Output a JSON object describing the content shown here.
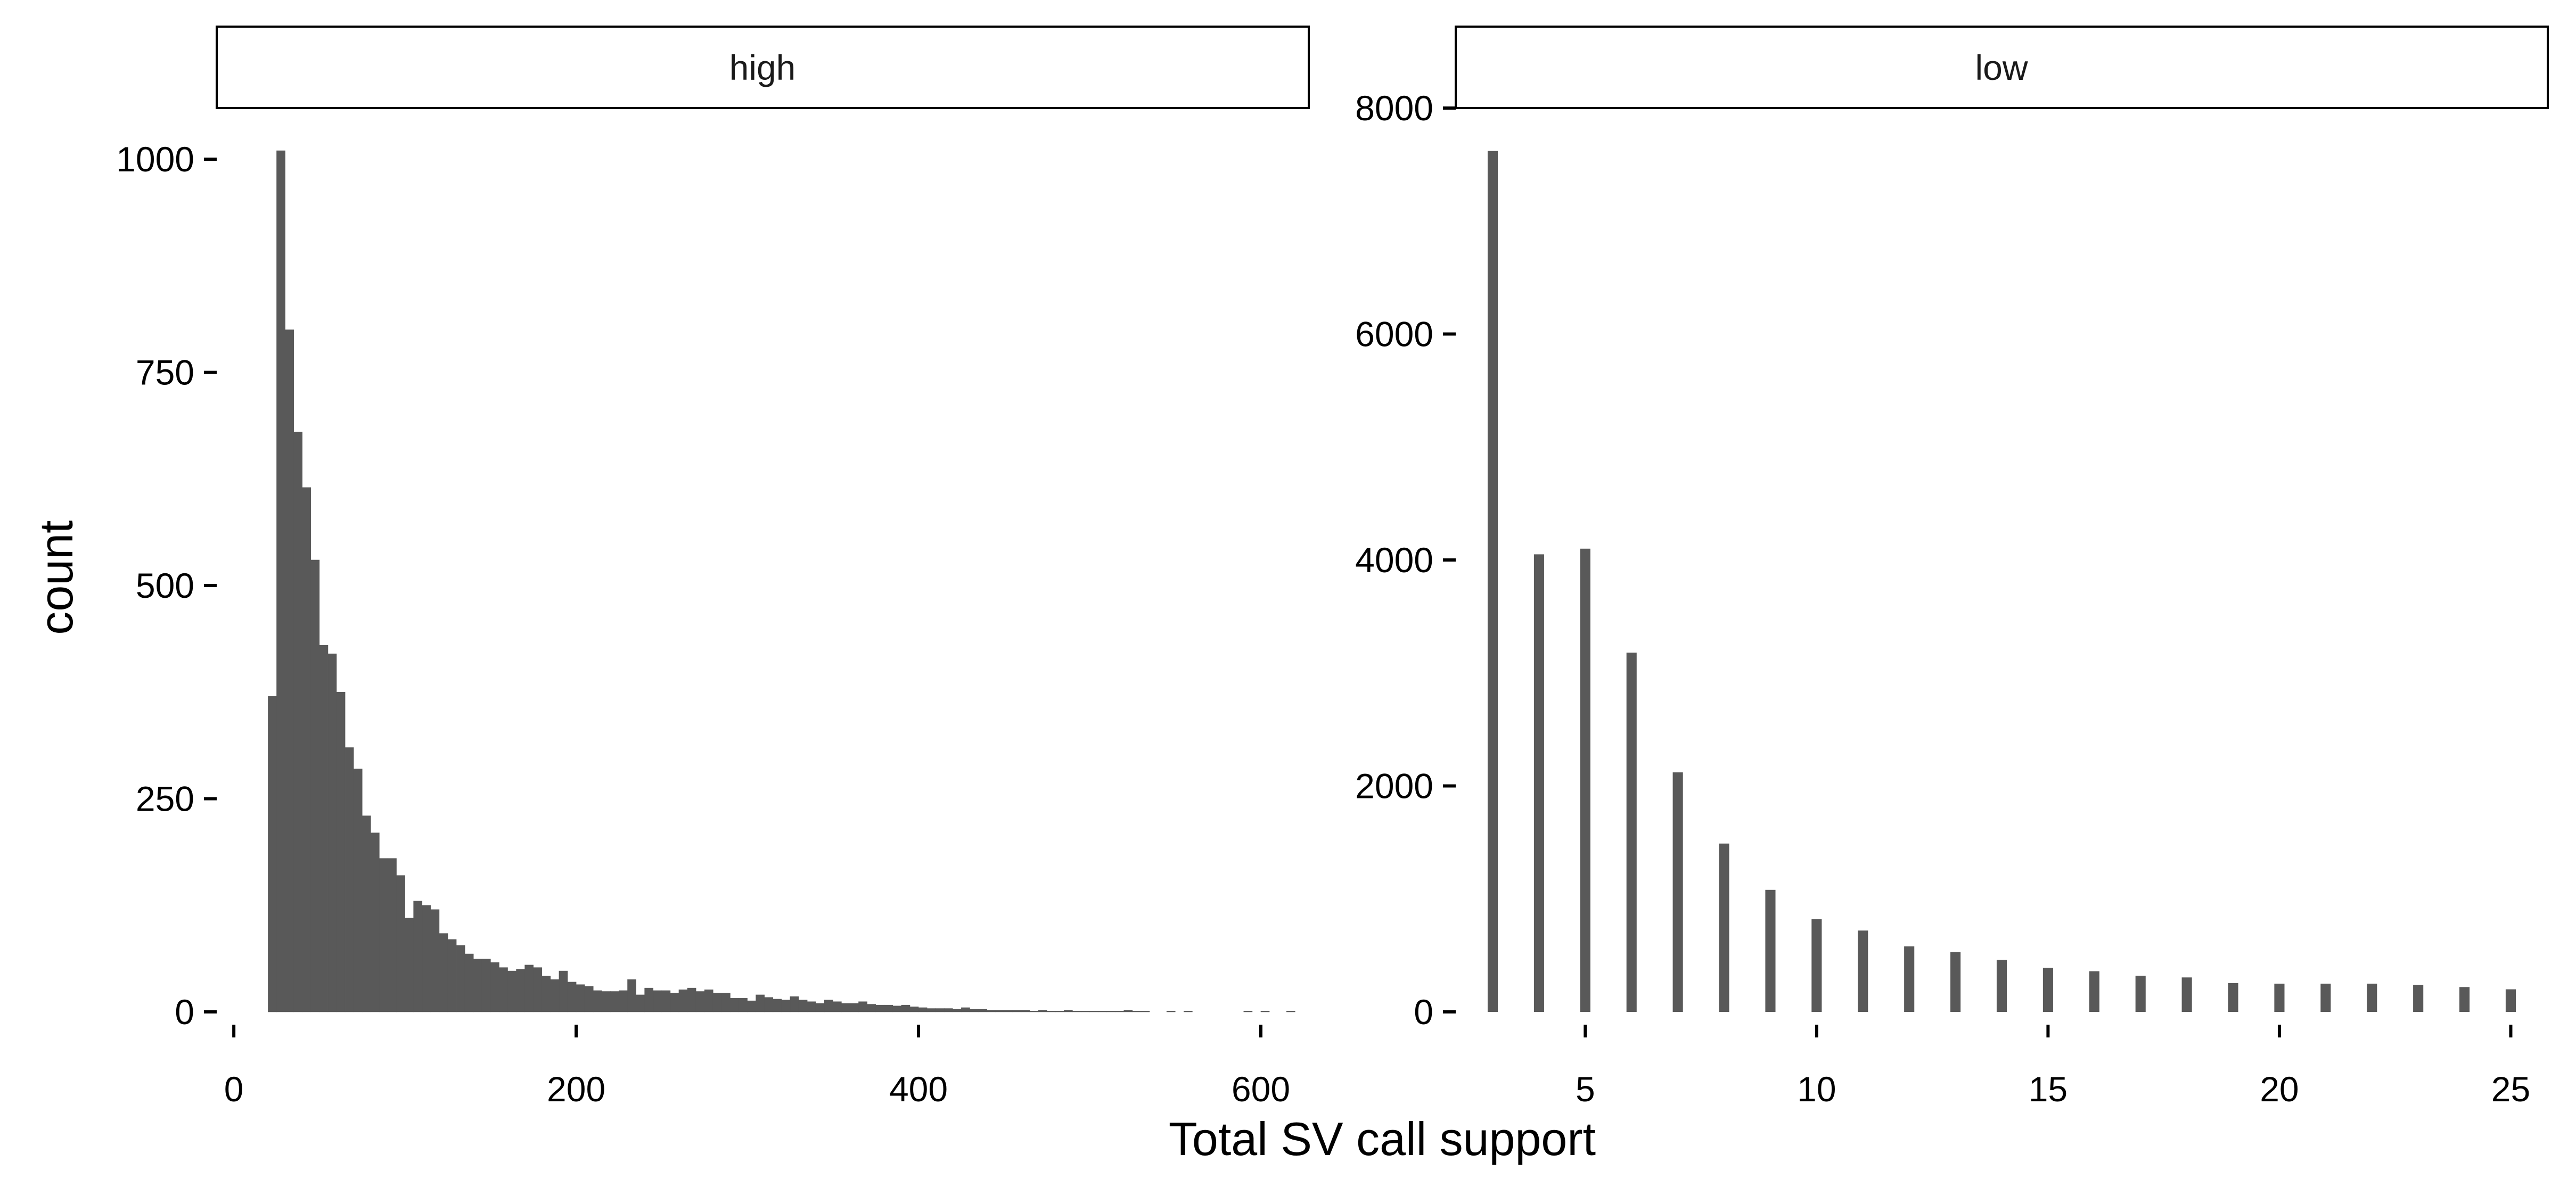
{
  "chart_data": {
    "type": "bar",
    "xlabel": "Total SV call support",
    "ylabel": "count",
    "bar_color": "#595959",
    "facet_scales": "free",
    "grid": false,
    "legend": "none",
    "panels": [
      {
        "strip": "high",
        "chart_type": "histogram",
        "xlim": [
          -10,
          628
        ],
        "ylim": [
          0,
          1060
        ],
        "x_ticks": [
          0,
          200,
          400,
          600
        ],
        "y_ticks": [
          0,
          250,
          500,
          750,
          1000
        ],
        "bin_width": 5,
        "bins": [
          [
            22.5,
            370
          ],
          [
            27.5,
            1010
          ],
          [
            32.5,
            800
          ],
          [
            37.5,
            680
          ],
          [
            42.5,
            615
          ],
          [
            47.5,
            530
          ],
          [
            52.5,
            430
          ],
          [
            57.5,
            420
          ],
          [
            62.5,
            375
          ],
          [
            67.5,
            310
          ],
          [
            72.5,
            285
          ],
          [
            77.5,
            230
          ],
          [
            82.5,
            210
          ],
          [
            87.5,
            180
          ],
          [
            92.5,
            180
          ],
          [
            97.5,
            160
          ],
          [
            102.5,
            110
          ],
          [
            107.5,
            130
          ],
          [
            112.5,
            125
          ],
          [
            117.5,
            120
          ],
          [
            122.5,
            92
          ],
          [
            127.5,
            85
          ],
          [
            132.5,
            78
          ],
          [
            137.5,
            68
          ],
          [
            142.5,
            62
          ],
          [
            147.5,
            62
          ],
          [
            152.5,
            58
          ],
          [
            157.5,
            52
          ],
          [
            162.5,
            48
          ],
          [
            167.5,
            50
          ],
          [
            172.5,
            55
          ],
          [
            177.5,
            52
          ],
          [
            182.5,
            42
          ],
          [
            187.5,
            38
          ],
          [
            192.5,
            48
          ],
          [
            197.5,
            35
          ],
          [
            202.5,
            32
          ],
          [
            207.5,
            30
          ],
          [
            212.5,
            25
          ],
          [
            217.5,
            24
          ],
          [
            222.5,
            24
          ],
          [
            227.5,
            25
          ],
          [
            232.5,
            38
          ],
          [
            237.5,
            20
          ],
          [
            242.5,
            28
          ],
          [
            247.5,
            25
          ],
          [
            252.5,
            25
          ],
          [
            257.5,
            22
          ],
          [
            262.5,
            26
          ],
          [
            267.5,
            28
          ],
          [
            272.5,
            24
          ],
          [
            277.5,
            26
          ],
          [
            282.5,
            22
          ],
          [
            287.5,
            22
          ],
          [
            292.5,
            16
          ],
          [
            297.5,
            16
          ],
          [
            302.5,
            13
          ],
          [
            307.5,
            20
          ],
          [
            312.5,
            17
          ],
          [
            317.5,
            15
          ],
          [
            322.5,
            14
          ],
          [
            327.5,
            18
          ],
          [
            332.5,
            14
          ],
          [
            337.5,
            12
          ],
          [
            342.5,
            10
          ],
          [
            347.5,
            14
          ],
          [
            352.5,
            12
          ],
          [
            357.5,
            10
          ],
          [
            362.5,
            10
          ],
          [
            367.5,
            12
          ],
          [
            372.5,
            9
          ],
          [
            377.5,
            8
          ],
          [
            382.5,
            8
          ],
          [
            387.5,
            7
          ],
          [
            392.5,
            8
          ],
          [
            397.5,
            6
          ],
          [
            402.5,
            5
          ],
          [
            407.5,
            4
          ],
          [
            412.5,
            4
          ],
          [
            417.5,
            4
          ],
          [
            422.5,
            3
          ],
          [
            427.5,
            5
          ],
          [
            432.5,
            3
          ],
          [
            437.5,
            3
          ],
          [
            442.5,
            2
          ],
          [
            447.5,
            2
          ],
          [
            452.5,
            2
          ],
          [
            457.5,
            2
          ],
          [
            462.5,
            2
          ],
          [
            467.5,
            1
          ],
          [
            472.5,
            2
          ],
          [
            477.5,
            1
          ],
          [
            482.5,
            1
          ],
          [
            487.5,
            2
          ],
          [
            492.5,
            1
          ],
          [
            497.5,
            1
          ],
          [
            502.5,
            1
          ],
          [
            507.5,
            1
          ],
          [
            512.5,
            1
          ],
          [
            517.5,
            1
          ],
          [
            522.5,
            2
          ],
          [
            527.5,
            1
          ],
          [
            532.5,
            1
          ],
          [
            547.5,
            1
          ],
          [
            557.5,
            1
          ],
          [
            592.5,
            1
          ],
          [
            602.5,
            1
          ],
          [
            617.5,
            1
          ]
        ]
      },
      {
        "strip": "low",
        "chart_type": "bar",
        "xlim": [
          2.2,
          25.8
        ],
        "ylim": [
          0,
          8000
        ],
        "x_ticks": [
          5,
          10,
          15,
          20,
          25
        ],
        "y_ticks": [
          0,
          2000,
          4000,
          6000,
          8000
        ],
        "bar_width": 0.22,
        "x": [
          3,
          4,
          5,
          6,
          7,
          8,
          9,
          10,
          11,
          12,
          13,
          14,
          15,
          16,
          17,
          18,
          19,
          20,
          21,
          22,
          23,
          24,
          25
        ],
        "values": [
          7620,
          4050,
          4100,
          3180,
          2120,
          1490,
          1080,
          820,
          720,
          580,
          530,
          460,
          390,
          360,
          320,
          305,
          255,
          250,
          250,
          250,
          240,
          220,
          200
        ]
      }
    ]
  }
}
